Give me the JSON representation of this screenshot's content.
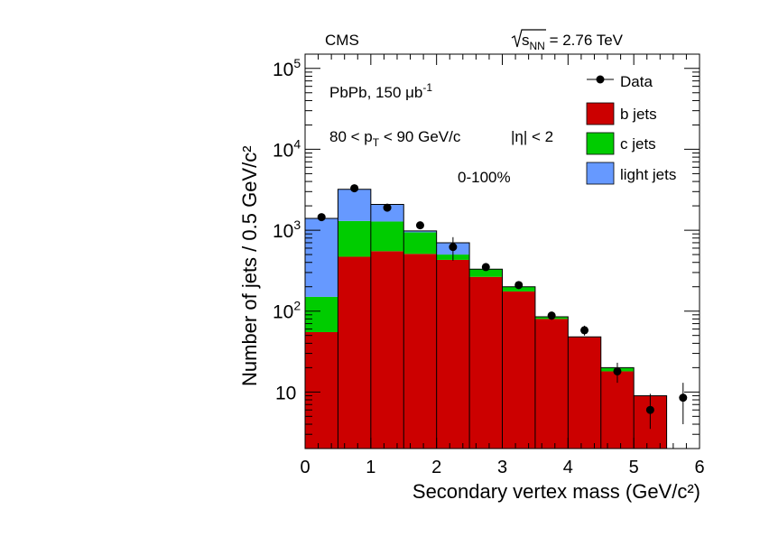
{
  "chart_data": {
    "type": "bar",
    "stacked": true,
    "log_y": true,
    "xlabel": "Secondary vertex mass (GeV/c²)",
    "ylabel": "Number of jets / 0.5 GeV/c²",
    "xlim": [
      0,
      6
    ],
    "ylim": [
      2,
      150000
    ],
    "x_ticks": [
      "0",
      "1",
      "2",
      "3",
      "4",
      "5",
      "6"
    ],
    "y_ticks": [
      {
        "value": 10,
        "label": "10"
      },
      {
        "value": 100,
        "label": "10",
        "exp": "2"
      },
      {
        "value": 1000,
        "label": "10",
        "exp": "3"
      },
      {
        "value": 10000,
        "label": "10",
        "exp": "4"
      },
      {
        "value": 100000,
        "label": "10",
        "exp": "5"
      }
    ],
    "bin_edges": [
      0,
      0.5,
      1,
      1.5,
      2,
      2.5,
      3,
      3.5,
      4,
      4.5,
      5,
      5.5,
      6
    ],
    "series": [
      {
        "name": "b jets",
        "color": "#cc0000",
        "values": [
          55,
          470,
          550,
          510,
          430,
          265,
          175,
          80,
          48,
          18,
          9,
          0
        ]
      },
      {
        "name": "c jets",
        "color": "#00cc00",
        "values": [
          95,
          830,
          730,
          430,
          70,
          65,
          25,
          5,
          0,
          2,
          0,
          0
        ]
      },
      {
        "name": "light jets",
        "color": "#6699ff",
        "values": [
          1250,
          1900,
          800,
          40,
          200,
          0,
          0,
          0,
          0,
          0,
          0,
          0
        ]
      }
    ],
    "data_points": {
      "name": "Data",
      "x": [
        0.25,
        0.75,
        1.25,
        1.75,
        2.25,
        2.75,
        3.25,
        3.75,
        4.25,
        4.75,
        5.25,
        5.75
      ],
      "y": [
        1450,
        3300,
        1900,
        1150,
        620,
        350,
        210,
        88,
        58,
        18,
        6,
        8.5
      ],
      "err_lo": [
        40,
        60,
        45,
        35,
        200,
        20,
        15,
        10,
        8,
        5,
        2.5,
        4.5
      ],
      "err_hi": [
        40,
        60,
        45,
        35,
        200,
        20,
        15,
        10,
        8,
        5,
        3.5,
        4.5
      ]
    },
    "legend": {
      "placement": "top-right"
    }
  },
  "annotations": {
    "experiment": "CMS",
    "energy_prefix": "s",
    "energy_sub": "NN",
    "energy_value": " = 2.76 TeV",
    "system_text": "PbPb, 150 μb",
    "system_sup": "-1",
    "pt_left": "80 < p",
    "pt_sub": "T",
    "pt_right": " < 90 GeV/c",
    "eta_text": "|η| < 2",
    "centrality": "0-100%"
  }
}
